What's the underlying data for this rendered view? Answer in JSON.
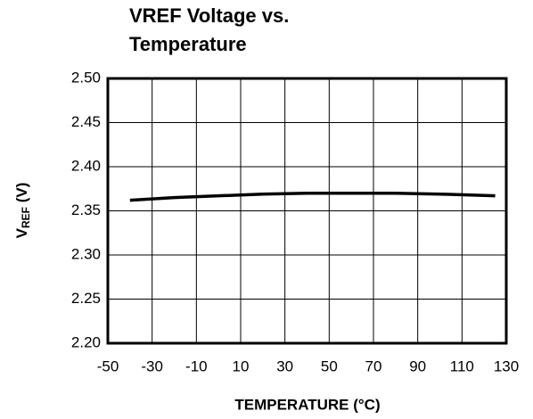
{
  "chart_data": {
    "type": "line",
    "title_lines": [
      "VREF Voltage vs.",
      "Temperature"
    ],
    "xlabel": "TEMPERATURE (°C)",
    "ylabel_parts": [
      "V",
      "REF",
      " (V)"
    ],
    "xlim": [
      -50,
      130
    ],
    "xticks": [
      -50,
      -30,
      -10,
      10,
      30,
      50,
      70,
      90,
      110,
      130
    ],
    "ylim": [
      2.2,
      2.5
    ],
    "yticks": [
      {
        "value": 2.2,
        "label": "2.20"
      },
      2.25,
      {
        "value": 2.3,
        "label": "2.30"
      },
      2.35,
      {
        "value": 2.4,
        "label": "2.40"
      },
      2.45,
      {
        "value": 2.5,
        "label": "2.50"
      }
    ],
    "grid": true,
    "series": [
      {
        "color": "#000000",
        "x": [
          -40,
          -20,
          0,
          20,
          40,
          60,
          80,
          100,
          125
        ],
        "values": [
          2.362,
          2.365,
          2.367,
          2.369,
          2.37,
          2.37,
          2.37,
          2.369,
          2.367
        ]
      }
    ]
  }
}
